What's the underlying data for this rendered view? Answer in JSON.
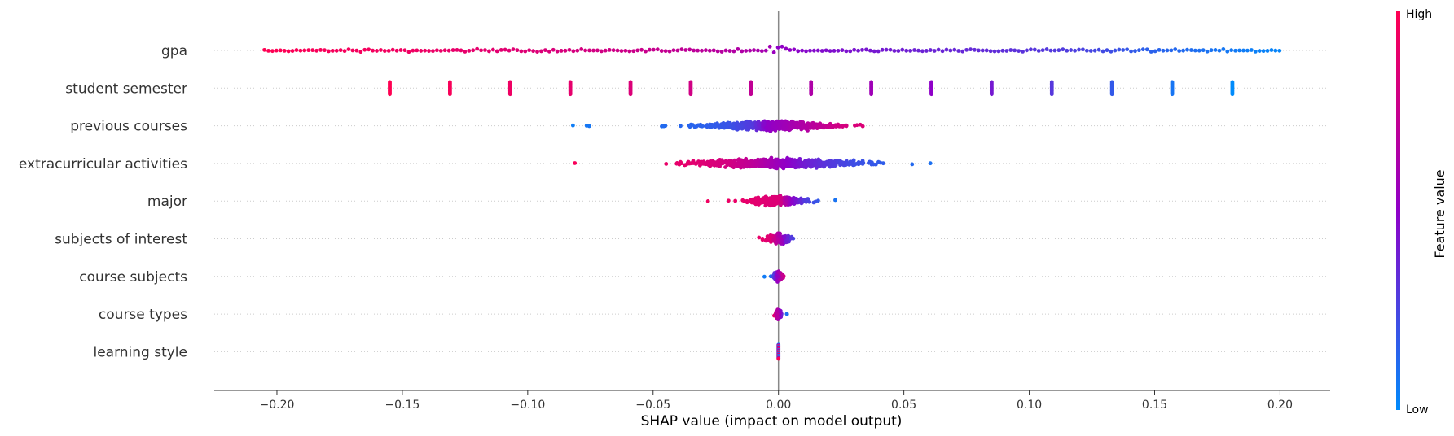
{
  "chart_data": {
    "type": "scatter",
    "subtype": "shap-beeswarm",
    "xlabel": "SHAP value (impact on model output)",
    "xlim": [
      -0.225,
      0.22
    ],
    "xticks": [
      -0.2,
      -0.15,
      -0.1,
      -0.05,
      0.0,
      0.05,
      0.1,
      0.15,
      0.2
    ],
    "xtick_labels": [
      "−0.20",
      "−0.15",
      "−0.10",
      "−0.05",
      "0.00",
      "0.05",
      "0.10",
      "0.15",
      "0.20"
    ],
    "features": [
      {
        "name": "gpa",
        "points": [
          [
            -0.205,
            1.0
          ],
          [
            -0.19,
            0.98
          ],
          [
            -0.175,
            0.96
          ],
          [
            -0.16,
            0.95
          ],
          [
            -0.145,
            0.93
          ],
          [
            -0.13,
            0.9
          ],
          [
            -0.115,
            0.88
          ],
          [
            -0.1,
            0.85
          ],
          [
            -0.085,
            0.82
          ],
          [
            -0.07,
            0.79
          ],
          [
            -0.055,
            0.76
          ],
          [
            -0.04,
            0.72
          ],
          [
            -0.025,
            0.68
          ],
          [
            -0.01,
            0.63
          ],
          [
            -0.003,
            0.58
          ],
          [
            0.0,
            0.5
          ],
          [
            0.003,
            0.52
          ],
          [
            0.01,
            0.47
          ],
          [
            0.025,
            0.44
          ],
          [
            0.04,
            0.41
          ],
          [
            0.055,
            0.38
          ],
          [
            0.07,
            0.36
          ],
          [
            0.085,
            0.34
          ],
          [
            0.1,
            0.31
          ],
          [
            0.115,
            0.28
          ],
          [
            0.13,
            0.23
          ],
          [
            0.145,
            0.16
          ],
          [
            0.16,
            0.12
          ],
          [
            0.175,
            0.08
          ],
          [
            0.19,
            0.04
          ],
          [
            0.2,
            0.02
          ]
        ]
      },
      {
        "name": "student semester",
        "points": [
          [
            -0.155,
            1.0
          ],
          [
            -0.131,
            0.97
          ],
          [
            -0.107,
            0.93
          ],
          [
            -0.083,
            0.89
          ],
          [
            -0.059,
            0.84
          ],
          [
            -0.035,
            0.79
          ],
          [
            -0.011,
            0.72
          ],
          [
            0.013,
            0.64
          ],
          [
            0.037,
            0.57
          ],
          [
            0.061,
            0.5
          ],
          [
            0.085,
            0.41
          ],
          [
            0.109,
            0.3
          ],
          [
            0.133,
            0.18
          ],
          [
            0.157,
            0.08
          ],
          [
            0.181,
            0.0
          ]
        ]
      },
      {
        "name": "previous courses",
        "points": [
          [
            -0.082,
            0.05
          ],
          [
            -0.07,
            0.1
          ],
          [
            -0.06,
            0.08
          ],
          [
            -0.045,
            0.12
          ],
          [
            -0.03,
            0.15
          ],
          [
            -0.02,
            0.2
          ],
          [
            -0.01,
            0.3
          ],
          [
            -0.005,
            0.5
          ],
          [
            0.0,
            0.55
          ],
          [
            0.005,
            0.6
          ],
          [
            0.015,
            0.7
          ],
          [
            0.025,
            0.8
          ],
          [
            0.04,
            0.88
          ],
          [
            0.055,
            0.92
          ],
          [
            0.065,
            0.96
          ],
          [
            0.075,
            1.0
          ]
        ]
      },
      {
        "name": "extracurricular activities",
        "points": [
          [
            -0.11,
            1.0
          ],
          [
            -0.087,
            0.98
          ],
          [
            -0.082,
            0.97
          ],
          [
            -0.064,
            0.95
          ],
          [
            -0.05,
            0.92
          ],
          [
            -0.035,
            0.88
          ],
          [
            -0.02,
            0.8
          ],
          [
            -0.01,
            0.7
          ],
          [
            0.0,
            0.55
          ],
          [
            0.01,
            0.4
          ],
          [
            0.02,
            0.3
          ],
          [
            0.03,
            0.22
          ],
          [
            0.045,
            0.15
          ],
          [
            0.06,
            0.1
          ],
          [
            0.075,
            0.05
          ],
          [
            0.095,
            0.0
          ]
        ]
      },
      {
        "name": "major",
        "points": [
          [
            -0.033,
            0.95
          ],
          [
            -0.02,
            0.92
          ],
          [
            -0.01,
            0.88
          ],
          [
            -0.003,
            0.85
          ],
          [
            0.0,
            0.85
          ],
          [
            0.005,
            0.5
          ],
          [
            0.01,
            0.3
          ],
          [
            0.02,
            0.1
          ],
          [
            0.03,
            0.05
          ],
          [
            0.037,
            0.02
          ]
        ]
      },
      {
        "name": "subjects of interest",
        "points": [
          [
            -0.013,
            0.95
          ],
          [
            -0.007,
            0.9
          ],
          [
            -0.003,
            0.85
          ],
          [
            0.0,
            0.65
          ],
          [
            0.003,
            0.4
          ],
          [
            0.008,
            0.15
          ],
          [
            0.013,
            0.05
          ]
        ]
      },
      {
        "name": "course subjects",
        "points": [
          [
            -0.006,
            0.05
          ],
          [
            -0.003,
            0.1
          ],
          [
            0.0,
            0.6
          ],
          [
            0.002,
            0.8
          ],
          [
            0.004,
            0.95
          ]
        ]
      },
      {
        "name": "course types",
        "points": [
          [
            -0.002,
            0.95
          ],
          [
            0.0,
            0.6
          ],
          [
            0.002,
            0.2
          ],
          [
            0.004,
            0.05
          ]
        ]
      },
      {
        "name": "learning style",
        "points": [
          [
            0.0,
            0.0
          ],
          [
            0.0,
            0.5
          ],
          [
            0.0,
            1.0
          ]
        ]
      }
    ],
    "colorbar": {
      "title": "Feature value",
      "high_label": "High",
      "low_label": "Low",
      "low_color": "#008bfb",
      "mid_color": "#8f00c8",
      "high_color": "#ff0052"
    }
  }
}
